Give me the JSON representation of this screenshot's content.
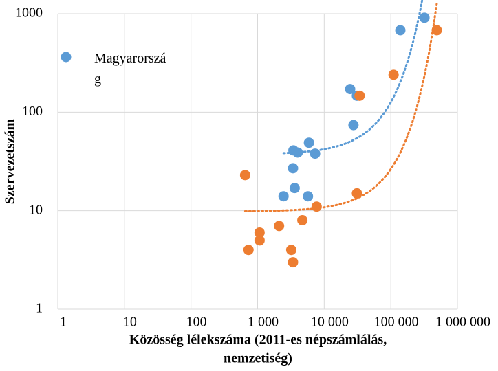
{
  "chart_data": {
    "type": "scatter",
    "xlabel": [
      "Közösség lélekszáma (2011-es népszámlálás,",
      "nemzetiség)"
    ],
    "ylabel": "Szervezetszám",
    "xscale": "log",
    "yscale": "log",
    "grid": true,
    "legend": "upper left",
    "xlim": [
      1,
      1000000
    ],
    "ylim": [
      1,
      1000
    ],
    "xticks": [
      1,
      10,
      100,
      {
        "value": 1000,
        "label": "1 000"
      },
      {
        "value": 10000,
        "label": "10 000"
      },
      {
        "value": 100000,
        "label": "100 000"
      },
      {
        "value": 1000000,
        "label": "1 000 000"
      }
    ],
    "yticks": [
      1,
      10,
      100,
      1000
    ],
    "series": [
      {
        "name": "Magyarország",
        "color": "#5b9bd5",
        "trendline": "exponential",
        "x": [
          2450,
          3450,
          4000,
          3400,
          3600,
          5900,
          5700,
          7300,
          24500,
          27500,
          31000,
          139000,
          320000
        ],
        "values": [
          14,
          41,
          39,
          27,
          17,
          49,
          14,
          38,
          172,
          74,
          147,
          680,
          910
        ]
      },
      {
        "color": "#ed7d31",
        "trendline": "exponential",
        "x": [
          650,
          730,
          1070,
          1070,
          2100,
          3200,
          3400,
          4700,
          7700,
          31000,
          34000,
          110000,
          490000
        ],
        "values": [
          23,
          4,
          6,
          5,
          7,
          4,
          3,
          8,
          11,
          15,
          147,
          240,
          680
        ]
      }
    ]
  }
}
